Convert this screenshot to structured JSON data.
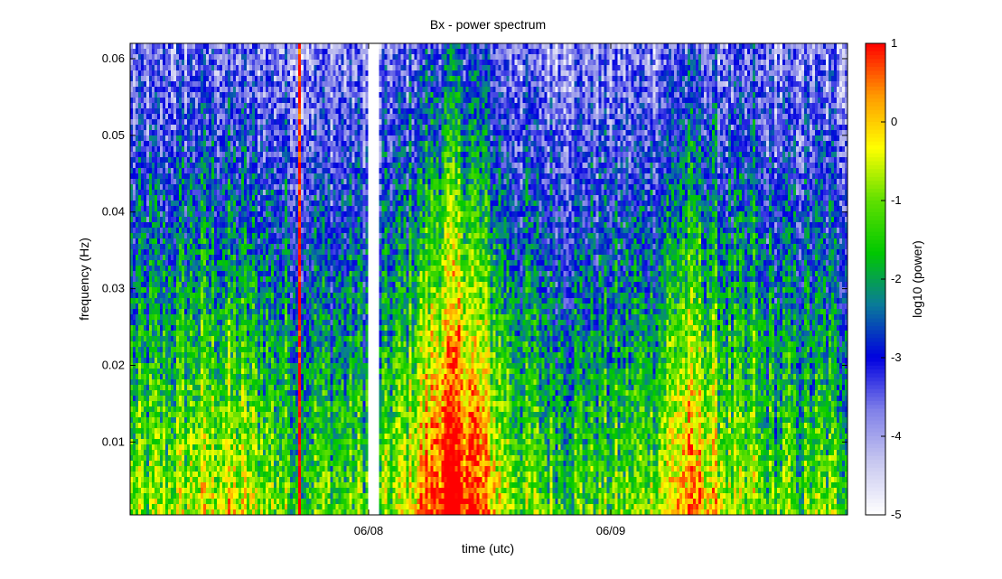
{
  "chart_data": {
    "type": "heatmap",
    "title": "Bx - power spectrum",
    "xlabel": "time (utc)",
    "ylabel": "frequency (Hz)",
    "colorbar_label": "log10 (power)",
    "x_ticks": [
      "06/08",
      "06/09"
    ],
    "y_ticks": [
      0.01,
      0.02,
      0.03,
      0.04,
      0.05,
      0.06
    ],
    "y_tick_labels": [
      "0.01",
      "0.02",
      "0.03",
      "0.04",
      "0.05",
      "0.06"
    ],
    "ylim": [
      0.0005,
      0.062
    ],
    "colorbar_ticks": [
      1,
      0,
      -1,
      -2,
      -3,
      -4,
      -5
    ],
    "colorbar_tick_labels": [
      "1",
      "0",
      "-1",
      "-2",
      "-3",
      "-4",
      "-5"
    ],
    "clim": [
      -5,
      1
    ],
    "colormap": [
      "#ffffff",
      "#c8c8f0",
      "#8080e8",
      "#0000e0",
      "#0a7a9a",
      "#00c800",
      "#60e000",
      "#ffff00",
      "#ff9900",
      "#ff0000"
    ],
    "data_gap": true,
    "grid": false,
    "legend": "colorbar-right",
    "features": [
      {
        "description": "strong power burst low frequency after 06/08",
        "peak_log10_power": 1
      },
      {
        "description": "narrow high-power stripe before 06/08",
        "peak_log10_power": 1
      }
    ]
  }
}
